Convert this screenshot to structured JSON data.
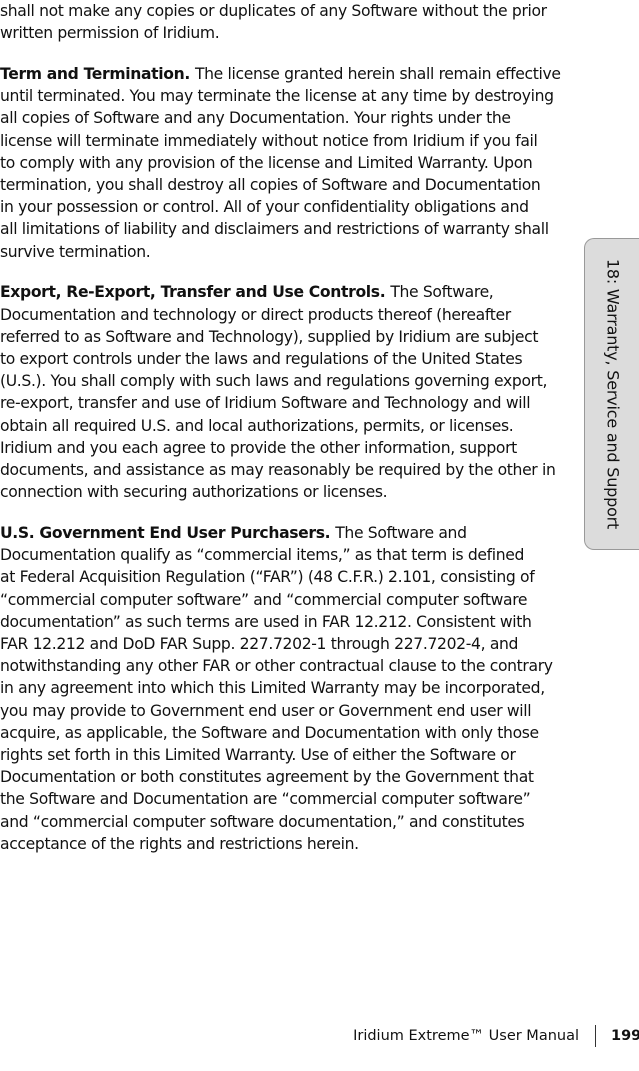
{
  "body": {
    "paragraphs": [
      {
        "lines": [
          "shall not make any copies or duplicates of any Software without the prior",
          "written permission of Iridium."
        ]
      },
      {
        "heading": "Term and Termination.",
        "lines": [
          "The license granted herein shall remain effective",
          "until terminated. You may terminate the license at any time by destroying",
          "all copies of Software and any Documentation. Your rights under the",
          "license will terminate immediately without notice from Iridium if you fail",
          "to comply with any provision of the license and Limited Warranty. Upon",
          "termination, you shall destroy all copies of Software and Documentation",
          "in your possession or control. All of your confidentiality obligations and",
          "all limitations of liability and disclaimers and restrictions of warranty shall",
          "survive termination."
        ]
      },
      {
        "heading": "Export, Re-Export, Transfer and Use Controls.",
        "lines": [
          "The Software,",
          "Documentation and technology or direct products thereof (hereafter",
          "referred to as Software and Technology), supplied by Iridium are subject",
          "to export controls under the laws and regulations of the United States",
          "(U.S.). You shall comply with such laws and regulations governing export,",
          "re-export, transfer and use of Iridium Software and Technology and will",
          "obtain all required U.S. and local authorizations, permits, or licenses.",
          "Iridium and you each agree to provide the other information, support",
          "documents, and assistance as may reasonably be required by the other in",
          "connection with securing authorizations or licenses."
        ]
      },
      {
        "heading": "U.S. Government End User Purchasers.",
        "lines": [
          "The Software and",
          "Documentation qualify as “commercial items,” as that term is defined",
          "at Federal Acquisition Regulation (“FAR”) (48 C.F.R.) 2.101, consisting of",
          "“commercial computer software” and “commercial computer software",
          "documentation” as such terms are used in FAR 12.212. Consistent with",
          "FAR 12.212 and DoD FAR Supp. 227.7202-1 through 227.7202-4, and",
          "notwithstanding any other FAR or other contractual clause to the contrary",
          "in any agreement into which this Limited Warranty may be incorporated,",
          "you may provide to Government end user or Government end user will",
          "acquire, as applicable, the Software and Documentation with only those",
          "rights set forth in this Limited Warranty. Use of either the Software or",
          "Documentation or both constitutes agreement by the Government that",
          "the Software and Documentation are “commercial computer software”",
          "and “commercial computer software documentation,” and constitutes",
          "acceptance of the rights and restrictions herein."
        ]
      }
    ]
  },
  "side_tab": {
    "label": "18: Warranty, Service and Support"
  },
  "footer": {
    "title": "Iridium Extreme™ User Manual",
    "page": "199"
  }
}
